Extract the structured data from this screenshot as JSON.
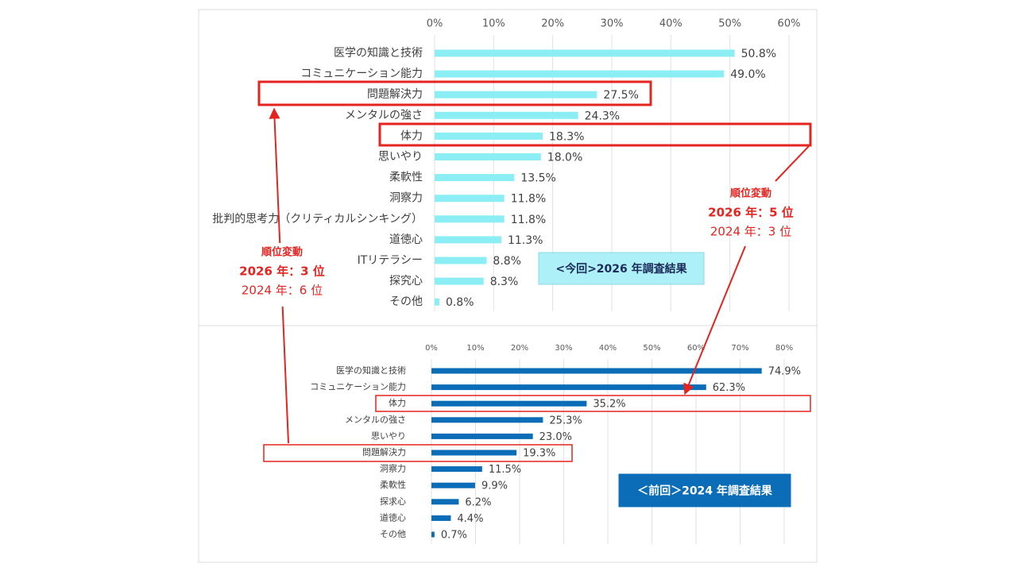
{
  "chart_data": [
    {
      "type": "bar",
      "orientation": "horizontal",
      "title": "<今回>2026 年調査結果",
      "color": "#8ceef5",
      "categories": [
        "医学の知識と技術",
        "コミュニケーション能力",
        "問題解決力",
        "メンタルの強さ",
        "体力",
        "思いやり",
        "柔軟性",
        "洞察力",
        "批判的思考力（クリティカルシンキング）",
        "道徳心",
        "ITリテラシー",
        "探究心",
        "その他"
      ],
      "values": [
        50.8,
        49.0,
        27.5,
        24.3,
        18.3,
        18.0,
        13.5,
        11.8,
        11.8,
        11.3,
        8.8,
        8.3,
        0.8
      ],
      "value_labels": [
        "50.8%",
        "49.0%",
        "27.5%",
        "24.3%",
        "18.3%",
        "18.0%",
        "13.5%",
        "11.8%",
        "11.8%",
        "11.3%",
        "8.8%",
        "8.3%",
        "0.8%"
      ],
      "xlim": [
        0,
        60
      ],
      "xticks": [
        {
          "value": 0,
          "label": "0%"
        },
        {
          "value": 10,
          "label": "10%"
        },
        {
          "value": 20,
          "label": "20%"
        },
        {
          "value": 30,
          "label": "30%"
        },
        {
          "value": 40,
          "label": "40%"
        },
        {
          "value": 50,
          "label": "50%"
        },
        {
          "value": 60,
          "label": "60%"
        }
      ],
      "grid": true
    },
    {
      "type": "bar",
      "orientation": "horizontal",
      "title": "＜前回＞2024 年調査結果",
      "color": "#0b6db7",
      "categories": [
        "医学の知識と技術",
        "コミュニケーション能力",
        "体力",
        "メンタルの強さ",
        "思いやり",
        "問題解決力",
        "洞察力",
        "柔軟性",
        "探求心",
        "道徳心",
        "その他"
      ],
      "values": [
        74.9,
        62.3,
        35.2,
        25.3,
        23.0,
        19.3,
        11.5,
        9.9,
        6.2,
        4.4,
        0.7
      ],
      "value_labels": [
        "74.9%",
        "62.3%",
        "35.2%",
        "25.3%",
        "23.0%",
        "19.3%",
        "11.5%",
        "9.9%",
        "6.2%",
        "4.4%",
        "0.7%"
      ],
      "xlim": [
        0,
        80
      ],
      "xticks": [
        {
          "value": 0,
          "label": "0%"
        },
        {
          "value": 10,
          "label": "10%"
        },
        {
          "value": 20,
          "label": "20%"
        },
        {
          "value": 30,
          "label": "30%"
        },
        {
          "value": 40,
          "label": "40%"
        },
        {
          "value": 50,
          "label": "50%"
        },
        {
          "value": 60,
          "label": "60%"
        },
        {
          "value": 70,
          "label": "70%"
        },
        {
          "value": 80,
          "label": "80%"
        }
      ],
      "grid": true
    }
  ],
  "annotations": [
    {
      "heading": "順位変動",
      "current": "2026 年：3 位",
      "previous": "2024 年：6 位"
    },
    {
      "heading": "順位変動",
      "current": "2026 年：5 位",
      "previous": "2024 年：3 位"
    }
  ]
}
